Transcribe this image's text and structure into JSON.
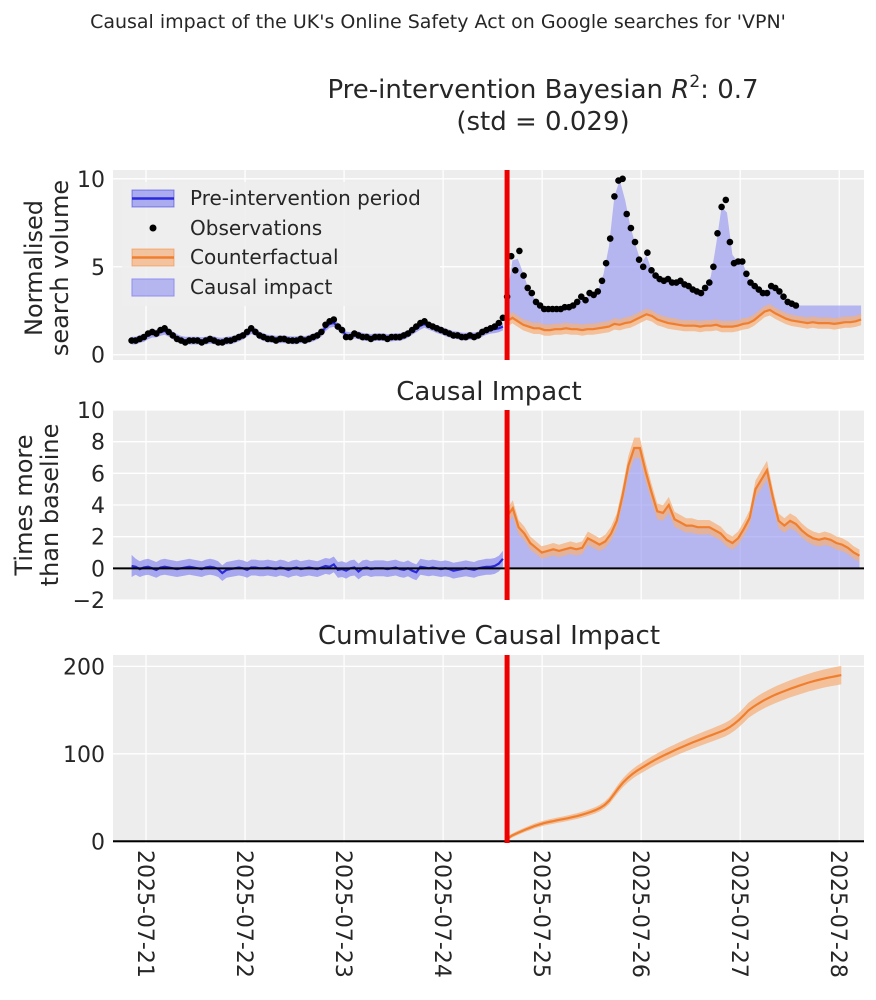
{
  "figure": {
    "suptitle": "Causal impact of the UK's Online Safety Act on Google searches for 'VPN'"
  },
  "colors": {
    "pre": "#2a2add",
    "pre_fill": "#8f8ff0",
    "counterfactual": "#ef7f2e",
    "counterfactual_fill": "#f4b07c",
    "impact_fill": "#8f8ff0",
    "observations": "#000000",
    "intervention": "#ee0000",
    "panel_bg": "#ededed"
  },
  "chart_data": [
    {
      "type": "line",
      "id": "observed",
      "title_line1_prefix": "Pre-intervention Bayesian ",
      "title_r": "R",
      "title_sup": "2",
      "title_line1_suffix": ": 0.7",
      "title_line2": "(std = 0.029)",
      "ylabel_line1": "Normalised",
      "ylabel_line2": "search volume",
      "ylim": [
        -0.3,
        10.5
      ],
      "yticks": [
        0,
        5,
        10
      ],
      "ytick_labels": [
        "0",
        "5",
        "10"
      ],
      "legend": [
        "Pre-intervention period",
        "Observations",
        "Counterfactual",
        "Causal impact"
      ],
      "x_start": 0,
      "x_step": 1,
      "observations": [
        0.8,
        0.8,
        0.9,
        1.0,
        1.2,
        1.3,
        1.2,
        1.4,
        1.5,
        1.3,
        1.1,
        0.9,
        0.8,
        0.7,
        0.8,
        0.8,
        0.8,
        0.7,
        0.8,
        0.9,
        0.8,
        0.7,
        0.7,
        0.8,
        0.8,
        0.9,
        1.0,
        1.1,
        1.3,
        1.5,
        1.3,
        1.1,
        1.0,
        0.9,
        0.9,
        0.8,
        0.9,
        0.9,
        0.8,
        0.8,
        0.8,
        0.9,
        0.8,
        0.9,
        1.0,
        1.1,
        1.3,
        1.7,
        1.9,
        2.0,
        1.6,
        1.4,
        1.0,
        1.0,
        1.2,
        1.1,
        1.0,
        1.0,
        0.9,
        1.0,
        1.0,
        1.0,
        0.9,
        1.0,
        1.0,
        1.0,
        1.1,
        1.2,
        1.4,
        1.6,
        1.8,
        1.9,
        1.7,
        1.6,
        1.5,
        1.4,
        1.3,
        1.2,
        1.1,
        1.1,
        1.0,
        1.0,
        1.1,
        1.0,
        1.1,
        1.3,
        1.4,
        1.5,
        1.6,
        1.8,
        2.1,
        3.3,
        5.6,
        4.8,
        5.9,
        4.5,
        3.8,
        3.5,
        3.0,
        2.8,
        2.6,
        2.6,
        2.6,
        2.6,
        2.6,
        2.7,
        2.7,
        2.8,
        3.0,
        3.3,
        3.1,
        3.5,
        3.4,
        3.6,
        4.2,
        5.2,
        6.6,
        9.0,
        9.9,
        10.0,
        8.0,
        7.2,
        6.4,
        5.4,
        5.0,
        5.8,
        4.8,
        4.5,
        4.3,
        4.2,
        4.3,
        4.1,
        4.1,
        4.2,
        4.0,
        3.9,
        3.7,
        3.6,
        3.5,
        3.8,
        4.1,
        5.0,
        6.9,
        8.4,
        8.8,
        6.4,
        5.2,
        5.3,
        5.3,
        4.6,
        4.1,
        3.9,
        3.7,
        3.5,
        3.5,
        3.9,
        3.8,
        3.6,
        3.3,
        3.0,
        2.9,
        2.8
      ],
      "pre_fit": [
        0.8,
        0.8,
        0.9,
        0.95,
        1.1,
        1.2,
        1.2,
        1.3,
        1.35,
        1.25,
        1.1,
        0.95,
        0.85,
        0.8,
        0.8,
        0.8,
        0.8,
        0.78,
        0.8,
        0.85,
        0.82,
        0.76,
        0.75,
        0.8,
        0.82,
        0.88,
        0.98,
        1.08,
        1.25,
        1.4,
        1.3,
        1.1,
        1.0,
        0.92,
        0.9,
        0.85,
        0.88,
        0.88,
        0.84,
        0.82,
        0.82,
        0.88,
        0.84,
        0.9,
        0.98,
        1.08,
        1.25,
        1.55,
        1.75,
        1.8,
        1.6,
        1.4,
        1.1,
        1.05,
        1.15,
        1.1,
        1.02,
        1.0,
        0.95,
        1.0,
        1.0,
        1.0,
        0.95,
        0.98,
        1.0,
        1.0,
        1.08,
        1.18,
        1.35,
        1.5,
        1.65,
        1.75,
        1.65,
        1.55,
        1.45,
        1.38,
        1.28,
        1.2,
        1.12,
        1.1,
        1.04,
        1.02,
        1.08,
        1.04,
        1.1,
        1.25,
        1.35,
        1.42,
        1.45,
        1.5,
        1.6
      ],
      "counterfactual": [
        1.9,
        2.1,
        1.9,
        1.7,
        1.6,
        1.5,
        1.5,
        1.4,
        1.4,
        1.45,
        1.45,
        1.5,
        1.45,
        1.45,
        1.4,
        1.45,
        1.45,
        1.5,
        1.55,
        1.6,
        1.75,
        1.7,
        1.8,
        1.85,
        2.0,
        2.15,
        2.3,
        2.2,
        2.0,
        1.9,
        1.8,
        1.75,
        1.7,
        1.65,
        1.65,
        1.65,
        1.6,
        1.65,
        1.65,
        1.7,
        1.6,
        1.6,
        1.6,
        1.65,
        1.75,
        1.8,
        1.95,
        2.2,
        2.45,
        2.55,
        2.35,
        2.2,
        2.05,
        1.95,
        1.9,
        1.85,
        1.8,
        1.85,
        1.8,
        1.8,
        1.8,
        1.75,
        1.8,
        1.85,
        1.85,
        1.9,
        2.0
      ],
      "intervention_x": 91,
      "xlim": [
        -4.5,
        177.5
      ]
    },
    {
      "type": "line",
      "id": "impact",
      "title": "Causal Impact",
      "ylabel_line1": "Times more",
      "ylabel_line2": "than baseline",
      "ylim": [
        -2,
        10
      ],
      "yticks": [
        -2,
        0,
        2,
        4,
        6,
        8,
        10
      ],
      "ytick_labels": [
        "−2",
        "0",
        "2",
        "4",
        "6",
        "8",
        "10"
      ],
      "pre_values": [
        0.15,
        0.1,
        -0.05,
        0.05,
        0.1,
        0.0,
        -0.1,
        0.05,
        0.1,
        0.05,
        0.0,
        -0.05,
        0.0,
        0.05,
        0.1,
        0.05,
        0.0,
        -0.05,
        0.05,
        0.1,
        0.05,
        -0.05,
        -0.3,
        -0.1,
        -0.05,
        0.0,
        0.05,
        0.0,
        -0.1,
        0.05,
        0.05,
        0.0,
        0.0,
        0.05,
        0.0,
        -0.05,
        0.05,
        0.0,
        -0.1,
        0.0,
        0.05,
        -0.05,
        0.0,
        0.05,
        0.0,
        -0.05,
        0.05,
        0.15,
        0.1,
        0.25,
        -0.1,
        -0.05,
        -0.15,
        0.0,
        0.05,
        -0.2,
        0.0,
        0.05,
        -0.05,
        0.0,
        0.0,
        0.0,
        -0.05,
        0.0,
        0.05,
        -0.05,
        -0.1,
        0.0,
        -0.15,
        -0.25,
        0.1,
        0.05,
        0.0,
        0.05,
        0.0,
        -0.05,
        0.0,
        -0.05,
        -0.15,
        -0.1,
        -0.05,
        0.0,
        -0.05,
        -0.1,
        0.0,
        0.05,
        0.1,
        0.1,
        0.15,
        0.3,
        0.6
      ],
      "post_values": [
        3.3,
        3.8,
        2.6,
        2.2,
        1.6,
        1.3,
        1.0,
        1.1,
        1.2,
        1.1,
        1.2,
        1.3,
        1.2,
        1.3,
        1.9,
        1.7,
        1.5,
        1.7,
        2.2,
        3.0,
        4.6,
        6.5,
        7.6,
        7.6,
        6.1,
        4.8,
        3.6,
        3.5,
        4.0,
        3.1,
        2.9,
        2.7,
        2.7,
        2.6,
        2.6,
        2.6,
        2.4,
        2.2,
        1.8,
        1.6,
        1.9,
        2.5,
        3.2,
        5.0,
        5.6,
        6.2,
        4.5,
        3.0,
        2.7,
        3.0,
        2.8,
        2.4,
        2.1,
        1.9,
        1.8,
        1.9,
        1.8,
        1.6,
        1.5,
        1.3,
        1.0,
        0.8
      ],
      "xlim": [
        -4.5,
        177.5
      ]
    },
    {
      "type": "line",
      "id": "cumulative",
      "title": "Cumulative Causal Impact",
      "ylim": [
        -2,
        213
      ],
      "yticks": [
        0,
        100,
        200
      ],
      "ytick_labels": [
        "0",
        "100",
        "200"
      ],
      "cumulative_values": [
        2.5,
        6.3,
        8.9,
        11.2,
        13.4,
        15.5,
        17.6,
        19.3,
        20.8,
        22.0,
        23.1,
        24.2,
        25.2,
        26.3,
        27.5,
        28.7,
        30.1,
        31.7,
        33.5,
        35.5,
        38.0,
        41.5,
        46.5,
        53.5,
        60.8,
        67.2,
        72.4,
        76.9,
        80.7,
        84.0,
        87.2,
        90.4,
        93.4,
        96.2,
        98.8,
        101.3,
        103.8,
        106.2,
        108.5,
        110.8,
        113.0,
        115.1,
        117.2,
        119.3,
        121.3,
        123.3,
        125.4,
        127.7,
        130.7,
        134.5,
        139.0,
        144.2,
        149.8,
        153.5,
        157.0,
        160.2,
        163.0,
        165.6,
        168.0,
        170.2,
        172.3,
        174.3,
        176.2,
        178.0,
        179.8,
        181.5,
        183.0,
        184.4,
        185.7,
        186.9,
        188.0,
        189.0,
        190.0
      ],
      "xticks": [
        3.5,
        27.5,
        51.5,
        75.5,
        99.5,
        123.5,
        147.5,
        171.5
      ],
      "xtick_labels": [
        "2025-07-21",
        "2025-07-22",
        "2025-07-23",
        "2025-07-24",
        "2025-07-25",
        "2025-07-26",
        "2025-07-27",
        "2025-07-28"
      ],
      "xlim": [
        -4.5,
        177.5
      ]
    }
  ]
}
